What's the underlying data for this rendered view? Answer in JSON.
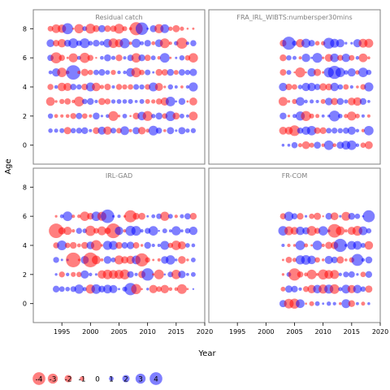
{
  "chart_data": {
    "type": "scatter",
    "description_axis": {
      "xlabel": "Year",
      "ylabel": "Age"
    },
    "xlim": [
      1990,
      2020
    ],
    "ylim": [
      -1.3,
      9.3
    ],
    "x_ticks": [
      1995,
      2000,
      2005,
      2010,
      2015,
      2020
    ],
    "y_ticks": [
      0,
      2,
      4,
      6,
      8
    ],
    "colors": {
      "positive": "#0000ff",
      "negative": "#ff0000",
      "frame": "#7f7f7f",
      "title": "#7f7f7f"
    },
    "panels": [
      {
        "title": "Residual catch",
        "years": [
          1993,
          2018
        ],
        "ages": [
          1,
          8
        ]
      },
      {
        "title": "FRA_IRL_WIBTS:numbersper30mins",
        "years": [
          2003,
          2018
        ],
        "ages": [
          0,
          7
        ]
      },
      {
        "title": "IRL-GAD",
        "years": [
          1994,
          2018
        ],
        "ages": [
          1,
          6
        ]
      },
      {
        "title": "FR-COM",
        "years": [
          2003,
          2018
        ],
        "ages": [
          0,
          6
        ]
      }
    ],
    "legend": {
      "values": [
        -4,
        -3,
        -2,
        -1,
        0,
        1,
        2,
        3,
        4
      ],
      "labels": [
        "-4",
        "-3",
        "-2",
        "-1",
        "0",
        "1",
        "2",
        "3",
        "4"
      ]
    }
  }
}
